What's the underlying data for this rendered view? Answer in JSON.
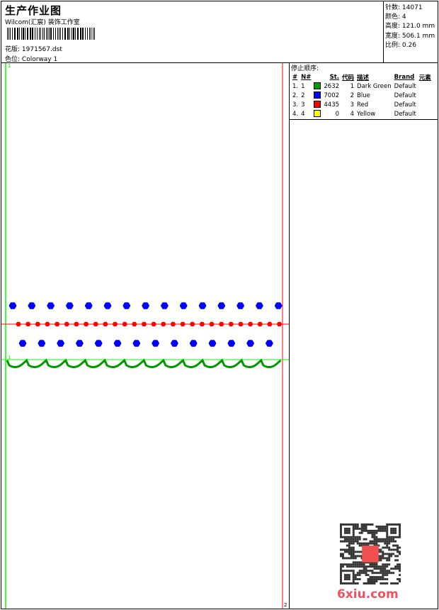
{
  "header": {
    "title": "生产作业图",
    "studio": "Wilcom(汇宸) 装饰工作室",
    "file_label": "花版:",
    "file_value": "1971567.dst",
    "colorway_label": "色位:",
    "colorway_value": "Colorway 1"
  },
  "info": {
    "stitches_label": "针数:",
    "stitches": "14071",
    "colors_label": "颜色:",
    "colors": "4",
    "height_label": "高度:",
    "height": "121.0 mm",
    "width_label": "宽度:",
    "width": "506.1 mm",
    "scale_label": "比例:",
    "scale": "0.26"
  },
  "stop_sequence": {
    "title": "停止顺序:",
    "headers": [
      "#",
      "N#",
      "St.",
      "代码",
      "描述",
      "Brand",
      "元素"
    ],
    "rows": [
      {
        "idx": "1.",
        "n": "1",
        "color": "#009900",
        "st": "2632",
        "code": "1",
        "desc": "Dark Green",
        "brand": "Default"
      },
      {
        "idx": "2.",
        "n": "2",
        "color": "#0000ff",
        "st": "7002",
        "code": "2",
        "desc": "Blue",
        "brand": "Default"
      },
      {
        "idx": "3.",
        "n": "3",
        "color": "#ff0000",
        "st": "4435",
        "code": "3",
        "desc": "Red",
        "brand": "Default"
      },
      {
        "idx": "4.",
        "n": "4",
        "color": "#ffff00",
        "st": "0",
        "code": "4",
        "desc": "Yellow",
        "brand": "Default"
      }
    ]
  },
  "design": {
    "start_marker": "1",
    "end_marker": "2"
  },
  "watermark": {
    "logo": "6xiu.com"
  },
  "colors": {
    "green_guide": "#00ff00",
    "red_guide": "#ff0000",
    "blue": "#0000ff",
    "red": "#ff0000",
    "dark_green": "#009900"
  }
}
